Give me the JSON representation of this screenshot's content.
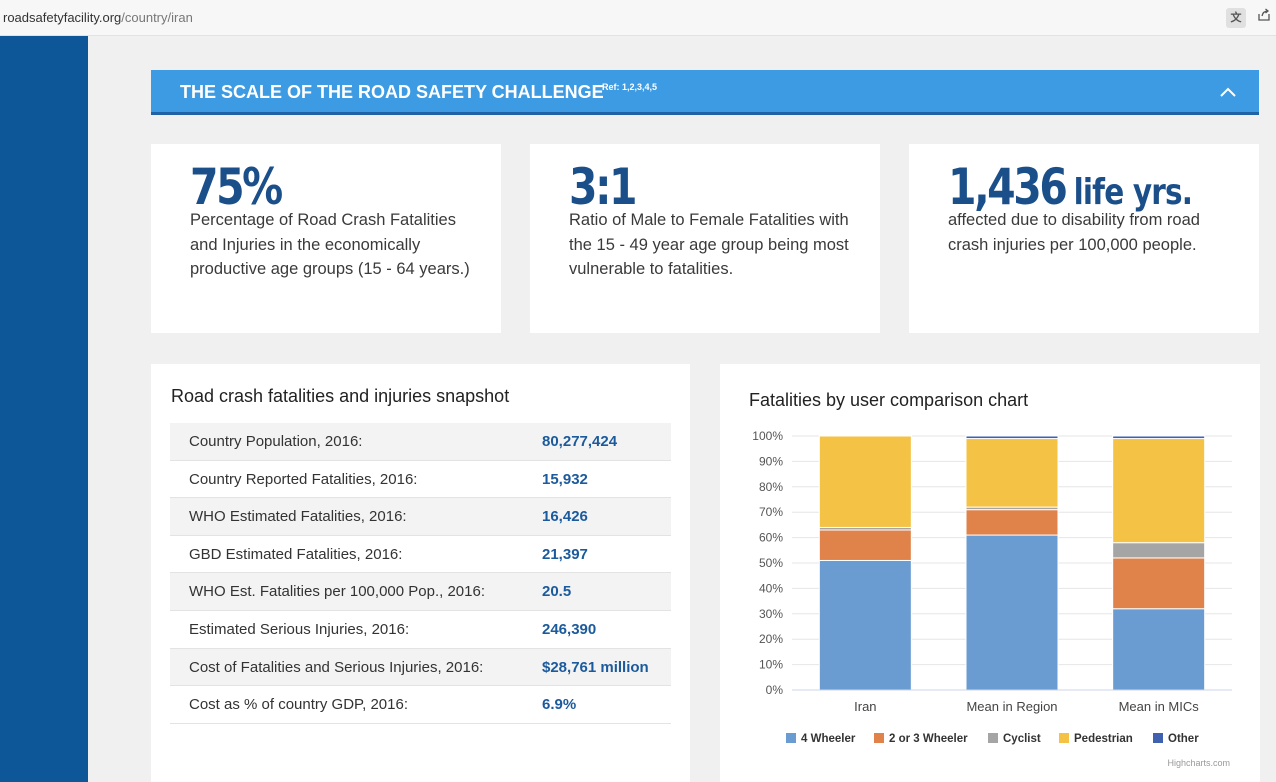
{
  "browser": {
    "url_domain": "roadsafetyfacility.org",
    "url_path": "/country/iran"
  },
  "banner": {
    "title": "THE SCALE OF THE ROAD SAFETY CHALLENGE",
    "ref": "Ref: 1,2,3,4,5"
  },
  "cards": [
    {
      "big": "75%",
      "unit": "",
      "text": "Percentage of Road Crash Fatalities and Injuries in the economically productive age groups (15 - 64 years.)"
    },
    {
      "big": "3:1",
      "unit": "",
      "text": "Ratio of Male to Female Fatalities with the 15 - 49 year age group being most vulnerable to fatalities."
    },
    {
      "big": "1,436",
      "unit": "life yrs.",
      "text": "affected due to disability from road crash injuries per 100,000 people."
    }
  ],
  "snapshot": {
    "title": "Road crash fatalities and injuries snapshot",
    "rows": [
      {
        "label": "Country Population, 2016:",
        "value": "80,277,424"
      },
      {
        "label": "Country Reported Fatalities, 2016:",
        "value": "15,932"
      },
      {
        "label": "WHO Estimated Fatalities, 2016:",
        "value": "16,426"
      },
      {
        "label": "GBD Estimated Fatalities, 2016:",
        "value": "21,397"
      },
      {
        "label": "WHO Est. Fatalities per 100,000 Pop., 2016:",
        "value": "20.5"
      },
      {
        "label": "Estimated Serious Injuries, 2016:",
        "value": "246,390"
      },
      {
        "label": "Cost of Fatalities and Serious Injuries, 2016:",
        "value": "$28,761 million"
      },
      {
        "label": "Cost as % of country GDP, 2016:",
        "value": "6.9%"
      }
    ]
  },
  "chart_data": {
    "type": "bar",
    "stacked": true,
    "title": "Fatalities by user comparison chart",
    "categories": [
      "Iran",
      "Mean in Region",
      "Mean in MICs"
    ],
    "y_ticks": [
      "0%",
      "10%",
      "20%",
      "30%",
      "40%",
      "50%",
      "60%",
      "70%",
      "80%",
      "90%",
      "100%"
    ],
    "ylim": [
      0,
      100
    ],
    "series": [
      {
        "name": "4 Wheeler",
        "color": "#6a9cd2",
        "values": [
          51,
          61,
          32
        ]
      },
      {
        "name": "2 or 3 Wheeler",
        "color": "#e0834a",
        "values": [
          12,
          10,
          20
        ]
      },
      {
        "name": "Cyclist",
        "color": "#a5a5a5",
        "values": [
          1,
          1,
          6
        ]
      },
      {
        "name": "Pedestrian",
        "color": "#f4c345",
        "values": [
          36,
          27,
          41
        ]
      },
      {
        "name": "Other",
        "color": "#3f61b0",
        "values": [
          0,
          1,
          1
        ]
      }
    ],
    "credit": "Highcharts.com"
  }
}
